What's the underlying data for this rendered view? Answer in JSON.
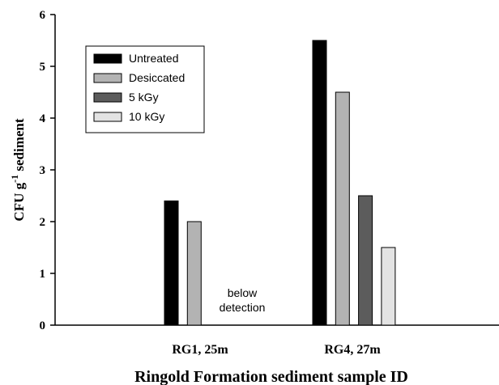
{
  "chart_data": {
    "type": "bar",
    "categories": [
      "RG1, 25m",
      "RG4, 27m"
    ],
    "series": [
      {
        "name": "Untreated",
        "values": [
          2.4,
          5.5
        ],
        "color": "#000000"
      },
      {
        "name": "Desiccated",
        "values": [
          2.0,
          4.5
        ],
        "color": "#b3b3b3"
      },
      {
        "name": "5 kGy",
        "values": [
          null,
          2.5
        ],
        "color": "#5c5c5c"
      },
      {
        "name": "10 kGy",
        "values": [
          null,
          1.5
        ],
        "color": "#e3e3e3"
      }
    ],
    "xlabel": "Ringold Formation sediment sample ID",
    "ylabel": {
      "base": "CFU g",
      "sup": "-1",
      "rest": " sediment"
    },
    "ylim": [
      0,
      6
    ],
    "yticks": [
      "0",
      "1",
      "2",
      "3",
      "4",
      "5",
      "6"
    ],
    "annotations": [
      {
        "lines": [
          "below",
          "detection"
        ],
        "category": "RG1, 25m"
      }
    ],
    "legend_position": "top-left",
    "grid": false
  }
}
